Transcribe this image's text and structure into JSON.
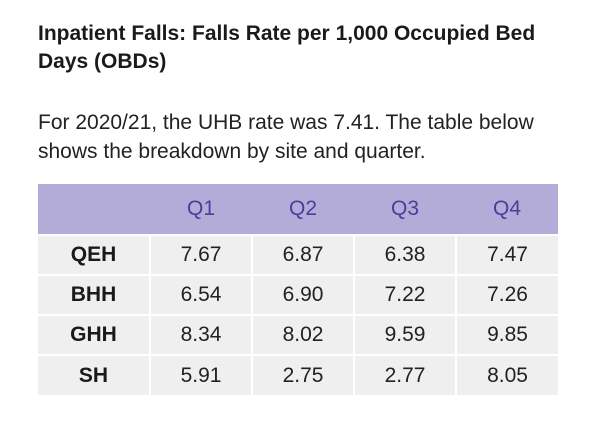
{
  "heading": "Inpatient Falls: Falls Rate per 1,000 Occupied Bed Days (OBDs)",
  "intro": "For 2020/21, the UHB rate was 7.41. The table below shows the breakdown by site and quarter.",
  "table": {
    "corner": "",
    "columns": [
      "Q1",
      "Q2",
      "Q3",
      "Q4"
    ],
    "rows": [
      {
        "site": "QEH",
        "values": [
          "7.67",
          "6.87",
          "6.38",
          "7.47"
        ]
      },
      {
        "site": "BHH",
        "values": [
          "6.54",
          "6.90",
          "7.22",
          "7.26"
        ]
      },
      {
        "site": "GHH",
        "values": [
          "8.34",
          "8.02",
          "9.59",
          "9.85"
        ]
      },
      {
        "site": "SH",
        "values": [
          "5.91",
          "2.75",
          "2.77",
          "8.05"
        ]
      }
    ]
  },
  "colors": {
    "header_bg": "#b3acd8",
    "header_text": "#4b3e9a",
    "cell_bg": "#efefef"
  }
}
